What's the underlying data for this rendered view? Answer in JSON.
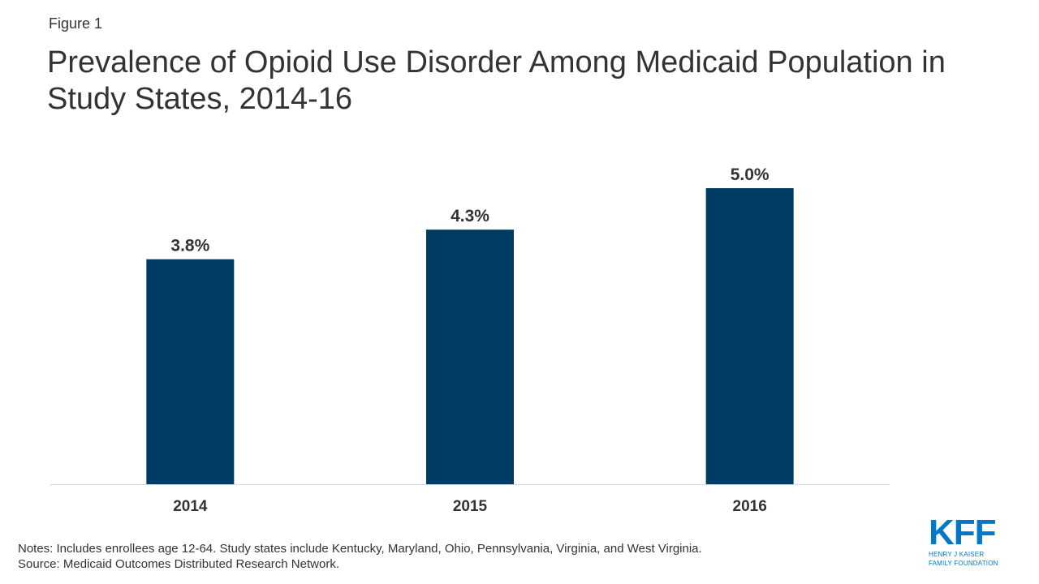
{
  "figure_label": "Figure 1",
  "title": "Prevalence of Opioid Use Disorder Among Medicaid Population in Study States, 2014-16",
  "notes": [
    "Notes: Includes enrollees age 12-64. Study states include Kentucky, Maryland, Ohio, Pennsylvania, Virginia, and West Virginia.",
    "Source: Medicaid Outcomes Distributed Research Network."
  ],
  "logo": {
    "mark": "KFF",
    "line1": "HENRY J KAISER",
    "line2": "FAMILY FOUNDATION",
    "color": "#0077c8"
  },
  "chart_data": {
    "type": "bar",
    "categories": [
      "2014",
      "2015",
      "2016"
    ],
    "values": [
      3.8,
      4.3,
      5.0
    ],
    "value_labels": [
      "3.8%",
      "4.3%",
      "5.0%"
    ],
    "ylim": [
      0,
      5.0
    ],
    "bar_color": "#003b64",
    "grid": false,
    "legend": "none"
  }
}
